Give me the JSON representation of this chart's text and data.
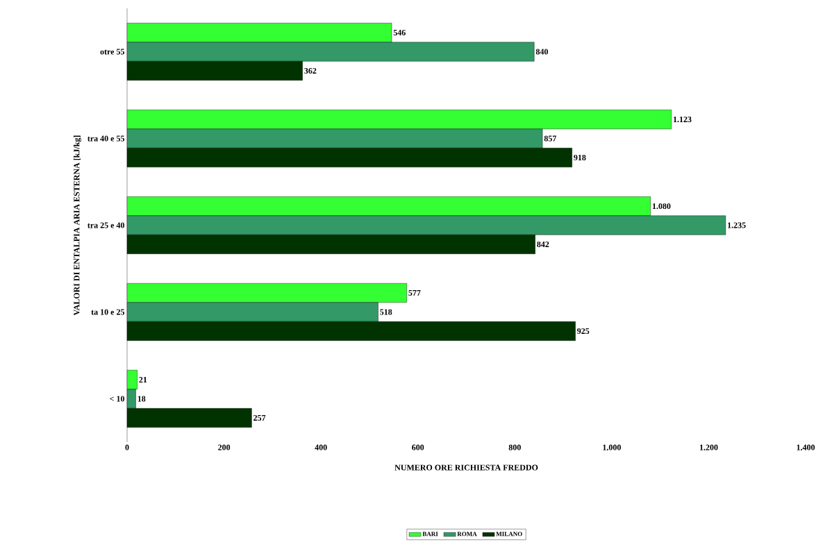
{
  "chart_data": {
    "type": "bar",
    "orientation": "horizontal",
    "xlabel": "NUMERO ORE RICHIESTA FREDDO",
    "ylabel": "VALORI DI ENTALPIA ARIA ESTERNA [kJ/kg]",
    "categories": [
      "otre 55",
      "tra 40 e 55",
      "tra 25 e 40",
      "ta 10 e 25",
      "< 10"
    ],
    "series": [
      {
        "name": "BARI",
        "color": "#33ff33",
        "values": [
          546,
          1123,
          1080,
          577,
          21
        ],
        "value_labels": [
          "546",
          "1.123",
          "1.080",
          "577",
          "21"
        ]
      },
      {
        "name": "ROMA",
        "color": "#339966",
        "values": [
          840,
          857,
          1235,
          518,
          18
        ],
        "value_labels": [
          "840",
          "857",
          "1.235",
          "518",
          "18"
        ]
      },
      {
        "name": "MILANO",
        "color": "#003300",
        "values": [
          362,
          918,
          842,
          925,
          257
        ],
        "value_labels": [
          "362",
          "918",
          "842",
          "925",
          "257"
        ]
      }
    ],
    "xlim": [
      0,
      1400
    ],
    "xticks": [
      0,
      200,
      400,
      600,
      800,
      {
        "value": 1000,
        "label": "1.000"
      },
      {
        "value": 1200,
        "label": "1.200"
      },
      {
        "value": 1400,
        "label": "1.400"
      }
    ],
    "legend": "bottom"
  }
}
